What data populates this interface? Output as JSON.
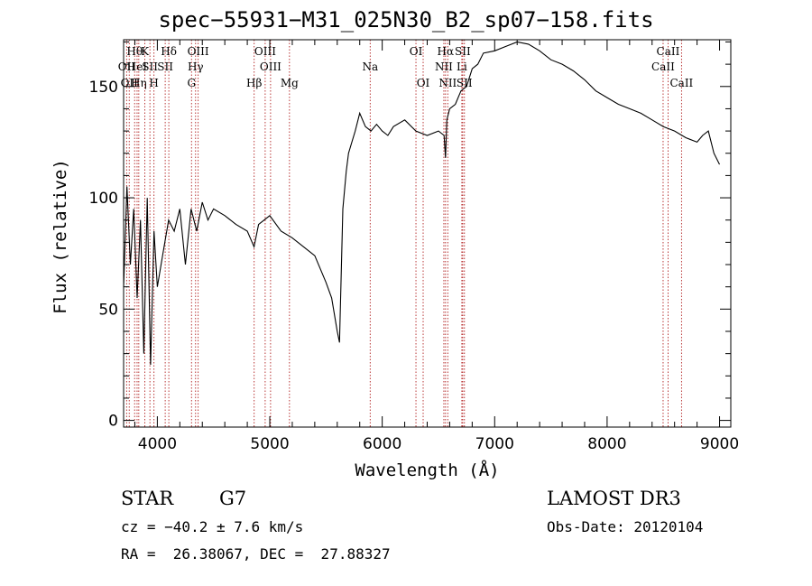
{
  "chart_data": {
    "type": "line",
    "title": "spec−55931−M31_025N30_B2_sp07−158.fits",
    "xlabel": "Wavelength (Å)",
    "ylabel": "Flux (relative)",
    "xlim": [
      3700,
      9100
    ],
    "ylim": [
      -3,
      171
    ],
    "xticks": [
      4000,
      5000,
      6000,
      7000,
      8000,
      9000
    ],
    "yticks": [
      0,
      50,
      100,
      150
    ],
    "series": [
      {
        "name": "flux",
        "x": [
          3700,
          3730,
          3760,
          3790,
          3820,
          3850,
          3880,
          3910,
          3940,
          3970,
          4000,
          4050,
          4100,
          4150,
          4200,
          4250,
          4300,
          4350,
          4400,
          4450,
          4500,
          4600,
          4700,
          4800,
          4860,
          4900,
          5000,
          5100,
          5200,
          5300,
          5400,
          5500,
          5550,
          5600,
          5620,
          5650,
          5680,
          5700,
          5730,
          5760,
          5800,
          5850,
          5900,
          5950,
          6000,
          6050,
          6100,
          6200,
          6300,
          6400,
          6500,
          6550,
          6563,
          6575,
          6600,
          6650,
          6700,
          6750,
          6800,
          6850,
          6900,
          7000,
          7100,
          7200,
          7300,
          7400,
          7500,
          7600,
          7700,
          7800,
          7900,
          8000,
          8100,
          8200,
          8300,
          8400,
          8500,
          8600,
          8700,
          8800,
          8850,
          8900,
          8950,
          9000
        ],
        "y": [
          60,
          105,
          70,
          95,
          55,
          90,
          30,
          100,
          25,
          85,
          60,
          75,
          90,
          85,
          95,
          70,
          95,
          85,
          98,
          90,
          95,
          92,
          88,
          85,
          78,
          88,
          92,
          85,
          82,
          78,
          74,
          62,
          55,
          40,
          35,
          95,
          112,
          120,
          125,
          130,
          138,
          132,
          130,
          133,
          130,
          128,
          132,
          135,
          130,
          128,
          130,
          128,
          118,
          135,
          140,
          142,
          148,
          150,
          158,
          160,
          165,
          166,
          168,
          170,
          169,
          166,
          162,
          160,
          157,
          153,
          148,
          145,
          142,
          140,
          138,
          135,
          132,
          130,
          127,
          125,
          128,
          130,
          120,
          115
        ]
      }
    ],
    "lines": [
      {
        "wavelength": 3727,
        "label": "OII",
        "row": 2
      },
      {
        "wavelength": 3750,
        "label": "OII",
        "row": 3
      },
      {
        "wavelength": 3798,
        "label": "Hθ",
        "row": 1
      },
      {
        "wavelength": 3820,
        "label": "HeI",
        "row": 2
      },
      {
        "wavelength": 3835,
        "label": "Hη",
        "row": 3
      },
      {
        "wavelength": 3889,
        "label": "K",
        "row": 1
      },
      {
        "wavelength": 3934,
        "label": "SII",
        "row": 2
      },
      {
        "wavelength": 3970,
        "label": "H",
        "row": 3
      },
      {
        "wavelength": 4102,
        "label": "Hδ",
        "row": 1
      },
      {
        "wavelength": 4070,
        "label": "SII",
        "row": 2
      },
      {
        "wavelength": 4340,
        "label": "Hγ",
        "row": 2
      },
      {
        "wavelength": 4304,
        "label": "G",
        "row": 3
      },
      {
        "wavelength": 4363,
        "label": "OIII",
        "row": 1
      },
      {
        "wavelength": 4861,
        "label": "Hβ",
        "row": 3
      },
      {
        "wavelength": 4959,
        "label": "OIII",
        "row": 1
      },
      {
        "wavelength": 5007,
        "label": "OIII",
        "row": 2
      },
      {
        "wavelength": 5175,
        "label": "Mg",
        "row": 3
      },
      {
        "wavelength": 5893,
        "label": "Na",
        "row": 2
      },
      {
        "wavelength": 6300,
        "label": "OI",
        "row": 1
      },
      {
        "wavelength": 6364,
        "label": "OI",
        "row": 3
      },
      {
        "wavelength": 6548,
        "label": "NII",
        "row": 2
      },
      {
        "wavelength": 6563,
        "label": "Hα",
        "row": 1
      },
      {
        "wavelength": 6583,
        "label": "NII",
        "row": 3
      },
      {
        "wavelength": 6708,
        "label": "Li",
        "row": 2
      },
      {
        "wavelength": 6716,
        "label": "SII",
        "row": 1
      },
      {
        "wavelength": 6731,
        "label": "SII",
        "row": 3
      },
      {
        "wavelength": 8498,
        "label": "CaII",
        "row": 2
      },
      {
        "wavelength": 8542,
        "label": "CaII",
        "row": 1
      },
      {
        "wavelength": 8662,
        "label": "CaII",
        "row": 3
      }
    ]
  },
  "info": {
    "class": "STAR",
    "subclass": "G7",
    "cz": "cz = −40.2 ± 7.6 km/s",
    "coords": "RA =  26.38067, DEC =  27.88327",
    "survey": "LAMOST DR3",
    "obs_date": "Obs-Date: 20120104"
  }
}
